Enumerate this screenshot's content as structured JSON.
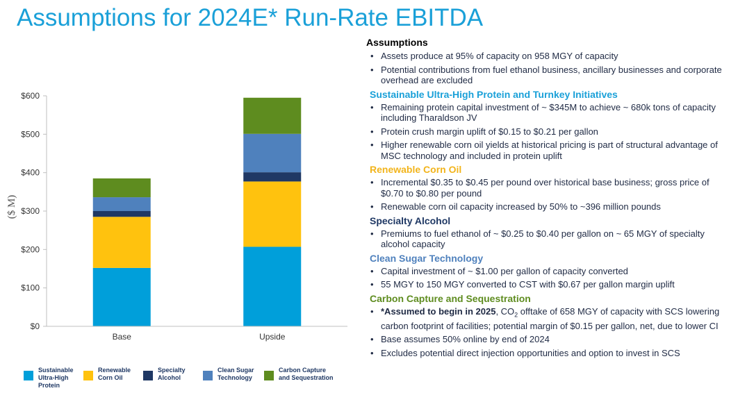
{
  "title": "Assumptions for 2024E* Run-Rate EBITDA",
  "colors": {
    "title": "#1aa0d8",
    "protein": "#009fda",
    "corn_oil": "#ffc20e",
    "alcohol": "#1f3864",
    "sugar": "#4f81bd",
    "carbon": "#5e8c1f"
  },
  "chart_data": {
    "type": "bar",
    "stacked": true,
    "categories": [
      "Base",
      "Upside"
    ],
    "ylabel": "($ M)",
    "ylim": [
      0,
      600
    ],
    "yticks": [
      "$0",
      "$100",
      "$200",
      "$300",
      "$400",
      "$500",
      "$600"
    ],
    "grid": false,
    "legend_position": "bottom",
    "series": [
      {
        "name": "Sustainable Ultra-High Protein",
        "color": "#009fda",
        "values": [
          152,
          207
        ]
      },
      {
        "name": "Renewable Corn Oil",
        "color": "#ffc20e",
        "values": [
          133,
          170
        ]
      },
      {
        "name": "Specialty Alcohol",
        "color": "#1f3864",
        "values": [
          15,
          24
        ]
      },
      {
        "name": "Clean Sugar Technology",
        "color": "#4f81bd",
        "values": [
          36,
          100
        ]
      },
      {
        "name": "Carbon Capture and Sequestration",
        "color": "#5e8c1f",
        "values": [
          49,
          94
        ]
      }
    ]
  },
  "legend": [
    {
      "label": "Sustainable\nUltra-High\nProtein",
      "color": "#009fda"
    },
    {
      "label": "Renewable\nCorn Oil",
      "color": "#ffc20e"
    },
    {
      "label": "Specialty\nAlcohol",
      "color": "#1f3864"
    },
    {
      "label": "Clean Sugar\nTechnology",
      "color": "#4f81bd"
    },
    {
      "label": "Carbon Capture\nand Sequestration",
      "color": "#5e8c1f"
    }
  ],
  "panel": {
    "heading": "Assumptions",
    "bullet": "•",
    "general": [
      "Assets produce at 95% of capacity on 958 MGY of capacity",
      "Potential contributions from fuel ethanol business, ancillary businesses and corporate overhead are excluded"
    ],
    "sections": {
      "protein": {
        "title": "Sustainable Ultra-High Protein and Turnkey Initiatives",
        "color": "#1aa0d8",
        "items": [
          "Remaining protein capital investment of ~ $345M to achieve ~ 680k tons of capacity including Tharaldson JV",
          "Protein crush margin uplift of $0.15 to $0.21 per gallon",
          "Higher renewable corn oil yields at historical pricing is part of structural advantage of MSC technology and included in protein uplift"
        ]
      },
      "corn_oil": {
        "title": "Renewable Corn Oil",
        "color": "#f2b41b",
        "items": [
          "Incremental $0.35 to $0.45 per pound over historical base business; gross price of $0.70 to $0.80 per pound",
          "Renewable corn oil capacity increased by 50% to ~396 million pounds"
        ]
      },
      "alcohol": {
        "title": "Specialty Alcohol",
        "color": "#1f3864",
        "items": [
          "Premiums to fuel ethanol of ~ $0.25 to $0.40 per gallon on ~ 65 MGY of specialty alcohol capacity"
        ]
      },
      "sugar": {
        "title": "Clean Sugar Technology",
        "color": "#4f81bd",
        "items": [
          "Capital investment of ~ $1.00 per gallon of capacity converted",
          "55 MGY to 150 MGY converted to CST with $0.67 per gallon margin uplift"
        ]
      },
      "carbon": {
        "title": "Carbon Capture and Sequestration",
        "color": "#5e8c1f",
        "first_bold": "*Assumed to begin in 2025",
        "first_pre": ", CO",
        "first_sub": "2",
        "first_post": " offtake of 658 MGY of capacity with SCS lowering carbon footprint of facilities; potential margin of $0.15 per gallon, net, due to lower CI",
        "items": [
          "Base assumes 50% online by end of 2024",
          "Excludes potential direct injection opportunities and option to invest in SCS"
        ]
      }
    }
  }
}
